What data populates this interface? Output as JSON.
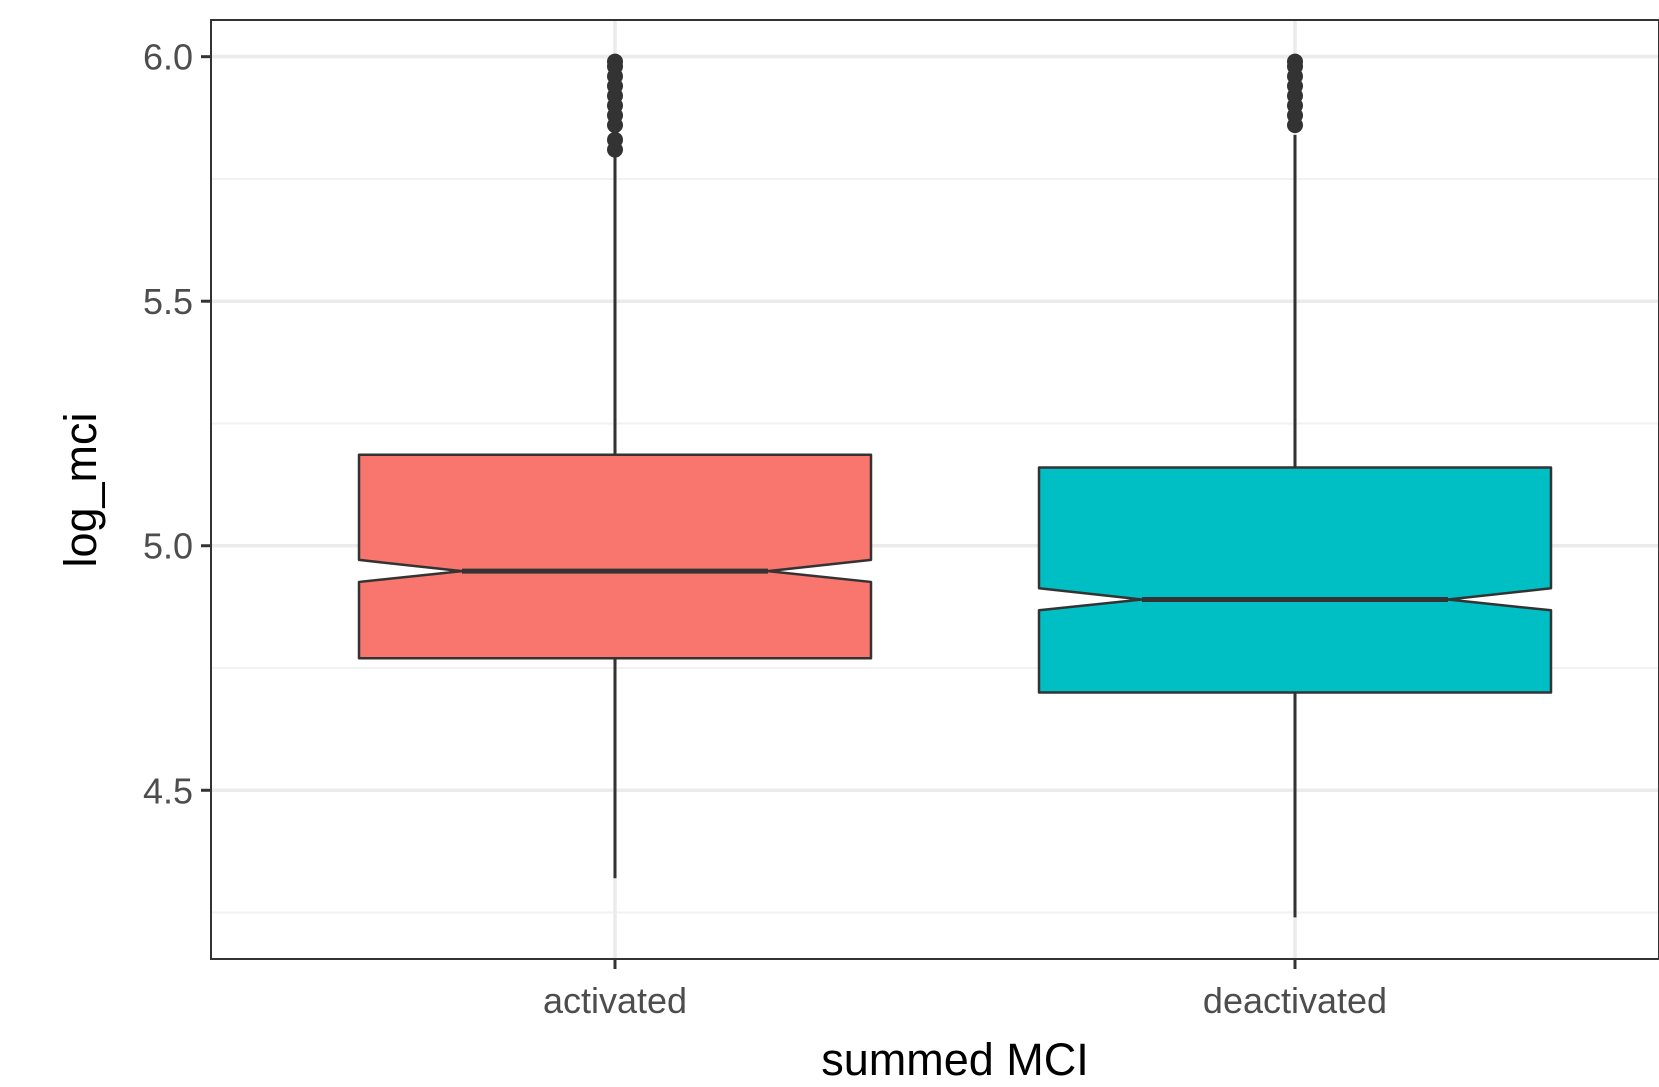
{
  "chart_data": {
    "type": "boxplot",
    "notched": true,
    "xlabel": "summed MCI",
    "ylabel": "log_mci",
    "ylim": [
      4.155,
      6.075
    ],
    "yticks": [
      4.5,
      5.0,
      5.5,
      6.0
    ],
    "ytick_labels": [
      "4.5",
      "5.0",
      "5.5",
      "6.0"
    ],
    "minor_yticks": [
      4.25,
      4.75,
      5.25,
      5.75
    ],
    "grid": true,
    "legend": "none",
    "categories": [
      "activated",
      "deactivated"
    ],
    "boxes": [
      {
        "category": "activated",
        "color": "#F8766D",
        "q1": 4.77,
        "median": 4.948,
        "q3": 5.186,
        "notch_low": 4.926,
        "notch_high": 4.971,
        "whisker_low": 4.32,
        "whisker_high": 5.8,
        "outliers": [
          5.81,
          5.83,
          5.86,
          5.88,
          5.9,
          5.92,
          5.94,
          5.96,
          5.98,
          5.99
        ]
      },
      {
        "category": "deactivated",
        "color": "#00BFC4",
        "q1": 4.7,
        "median": 4.89,
        "q3": 5.16,
        "notch_low": 4.868,
        "notch_high": 4.913,
        "whisker_low": 4.24,
        "whisker_high": 5.84,
        "outliers": [
          5.86,
          5.88,
          5.9,
          5.92,
          5.94,
          5.96,
          5.98,
          5.99
        ]
      }
    ]
  }
}
